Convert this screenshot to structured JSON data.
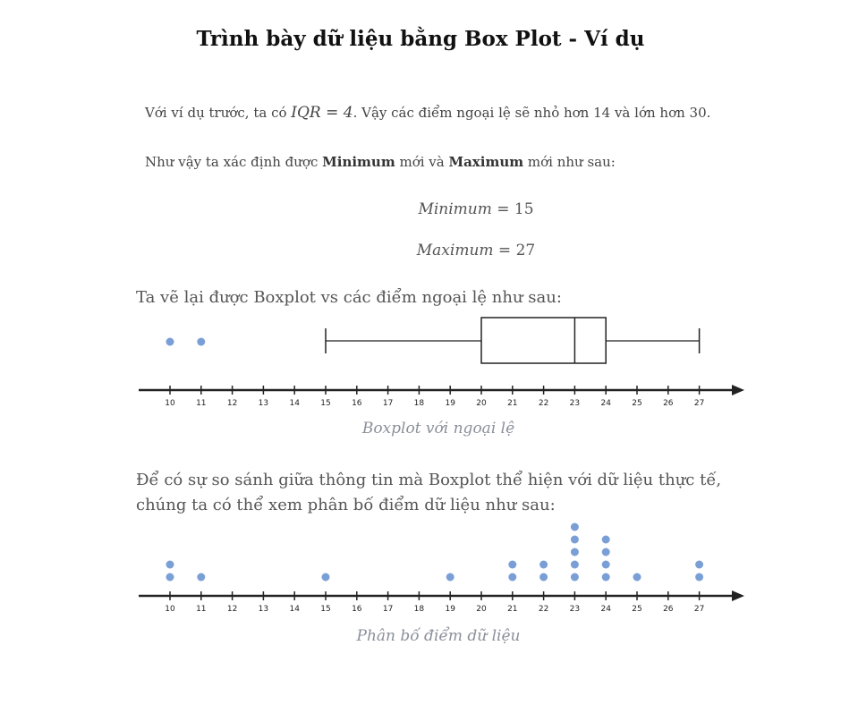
{
  "title": "Trình bày dữ liệu bằng Box Plot - Ví dụ",
  "intro": {
    "prefix": "Với ví dụ trước, ta có ",
    "iqr_expr": "IQR = 4",
    "suffix": ". Vậy các điểm ngoại lệ sẽ nhỏ hơn 14 và lớn hơn 30."
  },
  "determine": {
    "prefix": "Như vậy ta xác định được ",
    "min_word": "Minimum",
    "mid": " mới và ",
    "max_word": "Maximum",
    "suffix": " mới như sau:"
  },
  "equations": {
    "min_var": "Minimum",
    "min_rhs": " = 15",
    "max_var": "Maximum",
    "max_rhs": " = 27"
  },
  "boxplot_heading": "Ta vẽ lại được Boxplot vs các điểm ngoại lệ như sau:",
  "boxplot_caption": "Boxplot với ngoại lệ",
  "compare_heading_line1": "Để có sự so sánh giữa thông tin mà Boxplot thể hiện với dữ liệu thực tế,",
  "compare_heading_line2": "chúng ta có thể xem phân bố điểm dữ liệu như sau:",
  "dotplot_caption": "Phân bố điểm dữ liệu",
  "colors": {
    "dot": "#7a9fd6",
    "line": "#222222"
  },
  "chart_data": [
    {
      "type": "boxplot",
      "axis_ticks": [
        10,
        11,
        12,
        13,
        14,
        15,
        16,
        17,
        18,
        19,
        20,
        21,
        22,
        23,
        24,
        25,
        26,
        27
      ],
      "whisker_min": 15,
      "q1": 20,
      "median": 23,
      "q3": 24,
      "whisker_max": 27,
      "outliers": [
        10,
        11
      ]
    },
    {
      "type": "scatter",
      "axis_ticks": [
        10,
        11,
        12,
        13,
        14,
        15,
        16,
        17,
        18,
        19,
        20,
        21,
        22,
        23,
        24,
        25,
        26,
        27
      ],
      "counts": [
        {
          "x": 10,
          "count": 2
        },
        {
          "x": 11,
          "count": 1
        },
        {
          "x": 15,
          "count": 1
        },
        {
          "x": 19,
          "count": 1
        },
        {
          "x": 21,
          "count": 2
        },
        {
          "x": 22,
          "count": 2
        },
        {
          "x": 23,
          "count": 5
        },
        {
          "x": 24,
          "count": 4
        },
        {
          "x": 25,
          "count": 1
        },
        {
          "x": 27,
          "count": 2
        }
      ]
    }
  ]
}
